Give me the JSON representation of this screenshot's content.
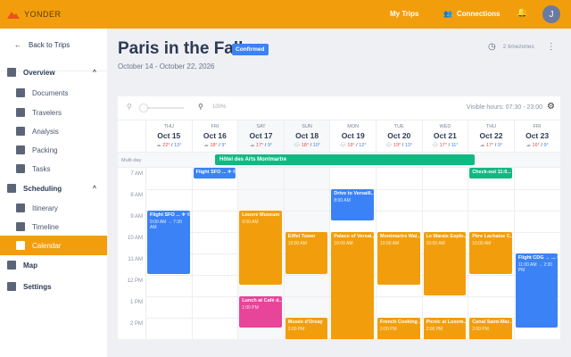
{
  "topbar": {
    "brand": "YONDER",
    "my_trips": "My Trips",
    "connections": "Connections",
    "avatar": "J"
  },
  "sidebar": {
    "back": "Back to Trips",
    "items": [
      {
        "label": "Overview",
        "icon": "dashboard-icon",
        "level": "top",
        "expanded": true
      },
      {
        "label": "Documents",
        "icon": "document-icon",
        "level": "sub"
      },
      {
        "label": "Travelers",
        "icon": "people-icon",
        "level": "sub"
      },
      {
        "label": "Analysis",
        "icon": "chart-icon",
        "level": "sub"
      },
      {
        "label": "Packing",
        "icon": "luggage-icon",
        "level": "sub"
      },
      {
        "label": "Tasks",
        "icon": "check-circle-icon",
        "level": "sub"
      },
      {
        "label": "Scheduling",
        "icon": "calendar-icon",
        "level": "top",
        "expanded": true
      },
      {
        "label": "Itinerary",
        "icon": "list-icon",
        "level": "sub"
      },
      {
        "label": "Timeline",
        "icon": "timeline-icon",
        "level": "sub"
      },
      {
        "label": "Calendar",
        "icon": "calendar-icon",
        "level": "sub",
        "active": true
      },
      {
        "label": "Map",
        "icon": "map-icon",
        "level": "top"
      },
      {
        "label": "Settings",
        "icon": "gear-icon",
        "level": "top"
      }
    ]
  },
  "page": {
    "title": "Paris in the Fall",
    "status": "Confirmed",
    "dates": "October 14 - October 22, 2026",
    "timezones": "2 timezones"
  },
  "calendar": {
    "zoom": "100%",
    "visible_hours": "Visible hours: 07:30 - 23:00",
    "multi_day_label": "Multi-day",
    "days": [
      {
        "dow": "THU",
        "date": "Oct 15",
        "hi": "22°",
        "lo": "13°",
        "weather": "cloud"
      },
      {
        "dow": "FRI",
        "date": "Oct 16",
        "hi": "18°",
        "lo": "9°",
        "weather": "cloud"
      },
      {
        "dow": "SAT",
        "date": "Oct 17",
        "hi": "17°",
        "lo": "9°",
        "weather": "cloud"
      },
      {
        "dow": "SUN",
        "date": "Oct 18",
        "hi": "18°",
        "lo": "10°",
        "weather": "rain"
      },
      {
        "dow": "MON",
        "date": "Oct 19",
        "hi": "19°",
        "lo": "12°",
        "weather": "rain"
      },
      {
        "dow": "TUE",
        "date": "Oct 20",
        "hi": "19°",
        "lo": "13°",
        "weather": "rain"
      },
      {
        "dow": "WED",
        "date": "Oct 21",
        "hi": "17°",
        "lo": "11°",
        "weather": "rain"
      },
      {
        "dow": "THU",
        "date": "Oct 22",
        "hi": "17°",
        "lo": "9°",
        "weather": "cloud"
      },
      {
        "dow": "FRI",
        "date": "Oct 23",
        "hi": "16°",
        "lo": "9°",
        "weather": "cloud"
      }
    ],
    "hours": [
      "7 AM",
      "8 AM",
      "9 AM",
      "10 AM",
      "11 AM",
      "12 PM",
      "1 PM",
      "2 PM"
    ],
    "multi_day_event": "Hôtel des Arts Montmartre",
    "events": [
      {
        "day": 1,
        "start": 7.0,
        "end": 7.5,
        "title": "Flight SFO ... ✈ ©",
        "sub": "",
        "color": "blue"
      },
      {
        "day": 0,
        "start": 9,
        "end": 12,
        "title": "Flight SFO ... ✈ ©",
        "sub": "9:00 AM → 7:30 AM",
        "color": "blue"
      },
      {
        "day": 2,
        "start": 9,
        "end": 12.5,
        "title": "Louvre Museum",
        "sub": "9:00 AM",
        "color": "orange"
      },
      {
        "day": 2,
        "start": 13,
        "end": 14.5,
        "title": "Lunch at Café d...",
        "sub": "1:00 PM",
        "color": "pink"
      },
      {
        "day": 3,
        "start": 10,
        "end": 12,
        "title": "Eiffel Tower",
        "sub": "10:00 AM",
        "color": "orange"
      },
      {
        "day": 3,
        "start": 14,
        "end": 16,
        "title": "Musée d'Orsay",
        "sub": "2:00 PM",
        "color": "orange"
      },
      {
        "day": 4,
        "start": 8,
        "end": 9.5,
        "title": "Drive to Versaill...",
        "sub": "8:00 AM",
        "color": "blue"
      },
      {
        "day": 4,
        "start": 10,
        "end": 16,
        "title": "Palace of Versai...",
        "sub": "10:00 AM",
        "color": "orange"
      },
      {
        "day": 5,
        "start": 10,
        "end": 12.5,
        "title": "Montmartre Wal...",
        "sub": "10:00 AM",
        "color": "orange"
      },
      {
        "day": 5,
        "start": 14,
        "end": 16,
        "title": "French Cooking ...",
        "sub": "2:00 PM",
        "color": "orange"
      },
      {
        "day": 6,
        "start": 10,
        "end": 13,
        "title": "Le Marais Explo...",
        "sub": "10:00 AM",
        "color": "orange"
      },
      {
        "day": 6,
        "start": 14,
        "end": 16,
        "title": "Picnic at Luxem...",
        "sub": "2:00 PM",
        "color": "orange"
      },
      {
        "day": 7,
        "start": 7.0,
        "end": 7.5,
        "title": "Check-out 11:0...",
        "sub": "",
        "color": "green"
      },
      {
        "day": 7,
        "start": 10,
        "end": 12,
        "title": "Père Lachaise C...",
        "sub": "10:00 AM",
        "color": "orange"
      },
      {
        "day": 7,
        "start": 14,
        "end": 16,
        "title": "Canal Saint-Mar...",
        "sub": "2:00 PM",
        "color": "orange"
      },
      {
        "day": 8,
        "start": 11,
        "end": 14.5,
        "title": "Flight CDG → ... ©",
        "sub": "11:00 AM → 2:30 PM",
        "color": "blue"
      }
    ]
  },
  "colors": {
    "brand": "#f29e0c",
    "blue": "#3b82f6",
    "orange": "#f29e0c",
    "pink": "#e8449a",
    "green": "#10b981"
  }
}
